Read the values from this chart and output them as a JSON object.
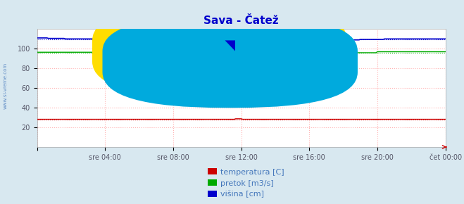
{
  "title": "Sava - Čatež",
  "title_color": "#0000cc",
  "bg_color": "#d8e8f0",
  "plot_bg_color": "#ffffff",
  "grid_color": "#ffb0b0",
  "xlim": [
    0,
    288
  ],
  "ylim": [
    0,
    120
  ],
  "yticks": [
    20,
    40,
    60,
    80,
    100
  ],
  "ytick_labels": [
    "20",
    "40",
    "60",
    "80",
    "100"
  ],
  "xtick_positions": [
    0,
    48,
    96,
    144,
    192,
    240,
    288
  ],
  "xtick_labels": [
    "",
    "sre 04:00",
    "sre 08:00",
    "sre 12:00",
    "sre 16:00",
    "sre 20:00",
    "čet 00:00"
  ],
  "temp_color": "#cc0000",
  "pretok_color": "#00aa00",
  "visina_color": "#0000cc",
  "temp_value": 28.0,
  "pretok_base": 96.5,
  "visina_base": 109.0,
  "watermark_text": "www.si-vreme.com",
  "watermark_color": "#4477bb",
  "left_text": "www.si-vreme.com",
  "legend_labels": [
    "temperatura [C]",
    "pretok [m3/s]",
    "višina [cm]"
  ],
  "legend_colors": [
    "#cc0000",
    "#00aa00",
    "#0000cc"
  ]
}
